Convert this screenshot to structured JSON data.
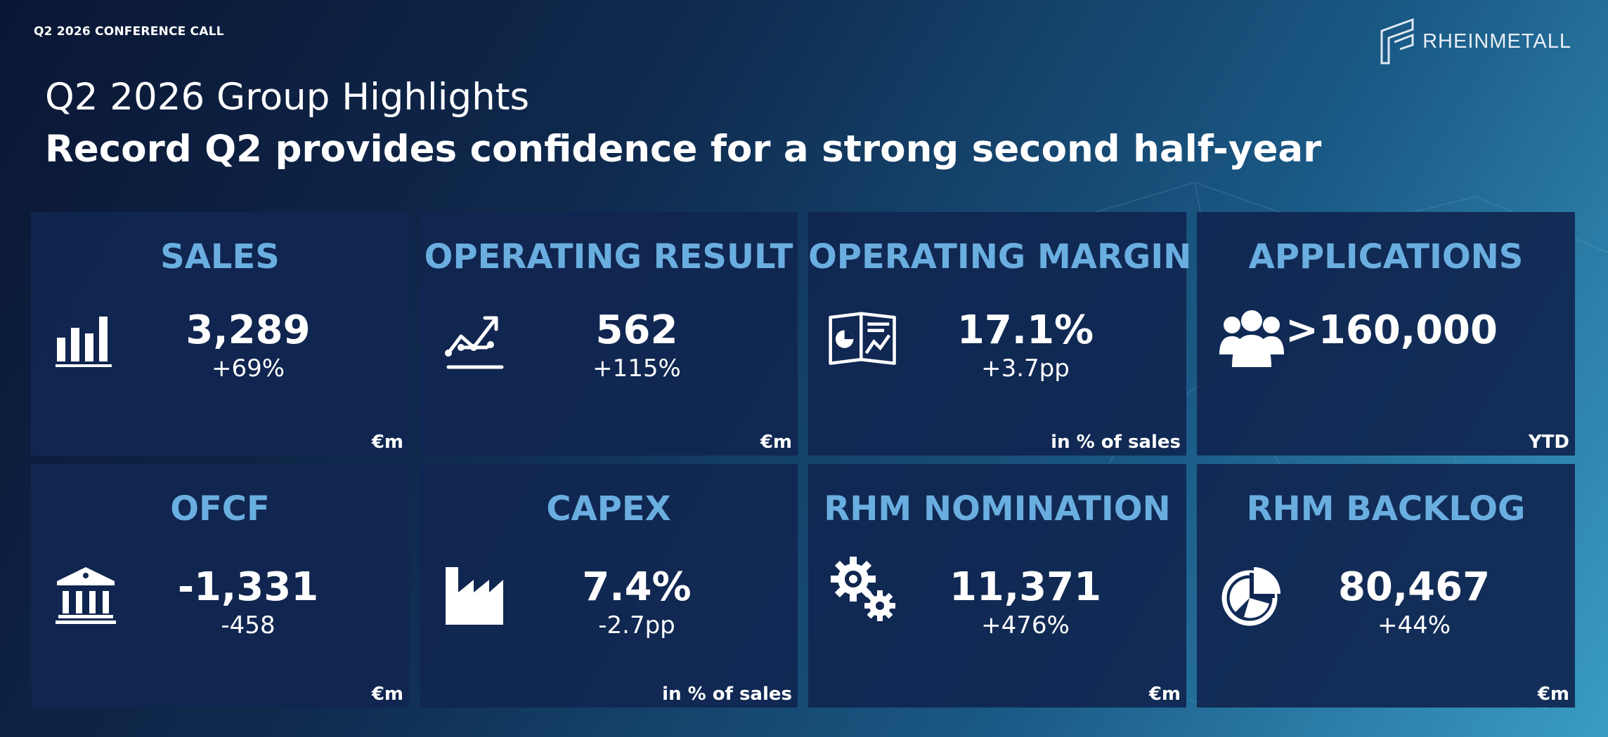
{
  "header": {
    "conference_label": "Q2 2026 CONFERENCE CALL",
    "logo_text": "RHEINMETALL"
  },
  "title": {
    "headline": "Q2 2026 Group Highlights",
    "subheadline": "Record Q2 provides confidence for a strong second half-year"
  },
  "cards": [
    {
      "title": "SALES",
      "value": "3,289",
      "change": "+69%",
      "unit": "€m",
      "icon": "bar-chart-icon"
    },
    {
      "title": "OPERATING RESULT",
      "value": "562",
      "change": "+115%",
      "unit": "€m",
      "icon": "trend-line-icon"
    },
    {
      "title": "OPERATING MARGIN",
      "value": "17.1%",
      "change": "+3.7pp",
      "unit": "in % of sales",
      "icon": "report-icon"
    },
    {
      "title": "APPLICATIONS",
      "value": ">160,000",
      "change": "",
      "unit": "YTD",
      "icon": "people-icon"
    },
    {
      "title": "OFCF",
      "value": "-1,331",
      "change": "-458",
      "unit": "€m",
      "icon": "bank-icon"
    },
    {
      "title": "CAPEX",
      "value": "7.4%",
      "change": "-2.7pp",
      "unit": "in % of sales",
      "icon": "factory-icon"
    },
    {
      "title": "RHM NOMINATION",
      "value": "11,371",
      "change": "+476%",
      "unit": "€m",
      "icon": "gears-icon"
    },
    {
      "title": "RHM BACKLOG",
      "value": "80,467",
      "change": "+44%",
      "unit": "€m",
      "icon": "pie-chart-icon"
    }
  ],
  "colors": {
    "accent": "#6aaee0",
    "card_background": "#102650"
  }
}
